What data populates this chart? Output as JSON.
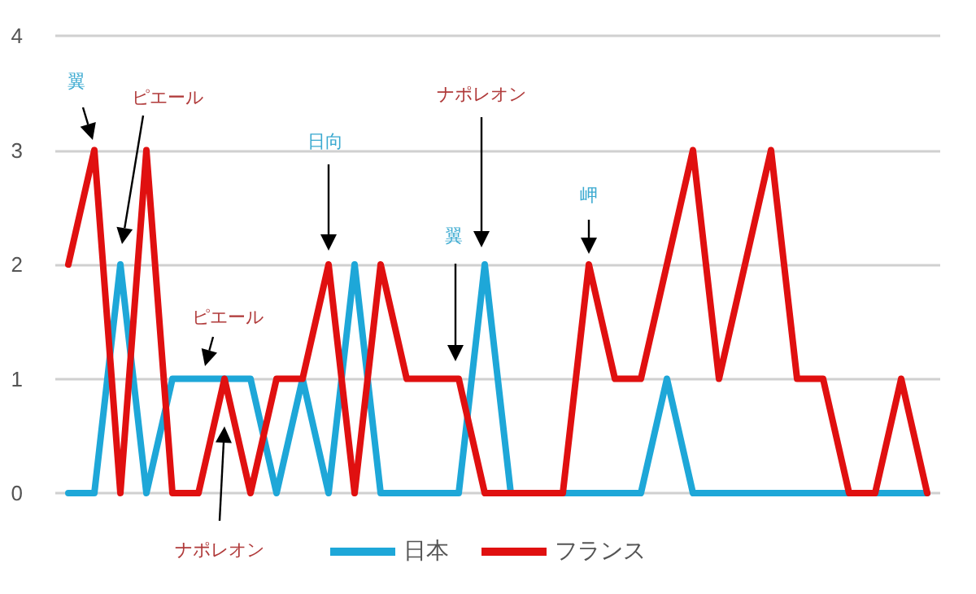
{
  "chart_data": {
    "type": "line",
    "categories": [
      null,
      null,
      null,
      null,
      null,
      null,
      null,
      null,
      null,
      null,
      null,
      null,
      null,
      null,
      null,
      null,
      null,
      null,
      null,
      null,
      null,
      null,
      null,
      null,
      null,
      null,
      null,
      null,
      null,
      null,
      null,
      null,
      null,
      null
    ],
    "series": [
      {
        "name": "日本",
        "color": "#1ea7d8",
        "values": [
          0,
          0,
          2,
          0,
          1,
          1,
          1,
          1,
          0,
          1,
          0,
          2,
          0,
          0,
          0,
          0,
          2,
          0,
          0,
          0,
          0,
          0,
          0,
          1,
          0,
          0,
          0,
          0,
          0,
          0,
          0,
          0,
          0,
          0
        ]
      },
      {
        "name": "フランス",
        "color": "#e01010",
        "values": [
          2,
          3,
          0,
          3,
          0,
          0,
          1,
          0,
          1,
          1,
          2,
          0,
          2,
          1,
          1,
          1,
          0,
          0,
          0,
          0,
          2,
          1,
          1,
          2,
          3,
          1,
          2,
          3,
          1,
          1,
          0,
          0,
          1,
          0
        ]
      }
    ],
    "ylim": [
      0,
      4
    ],
    "yticks": [
      0,
      1,
      2,
      3,
      4
    ],
    "grid": "y",
    "legend": "bottom",
    "marker": "none",
    "line_style": "solid",
    "annotations": [
      "翼",
      "ピエール",
      "日向",
      "ナポレオン",
      "翼",
      "岬",
      "ピエール",
      "ナポレオン"
    ]
  }
}
